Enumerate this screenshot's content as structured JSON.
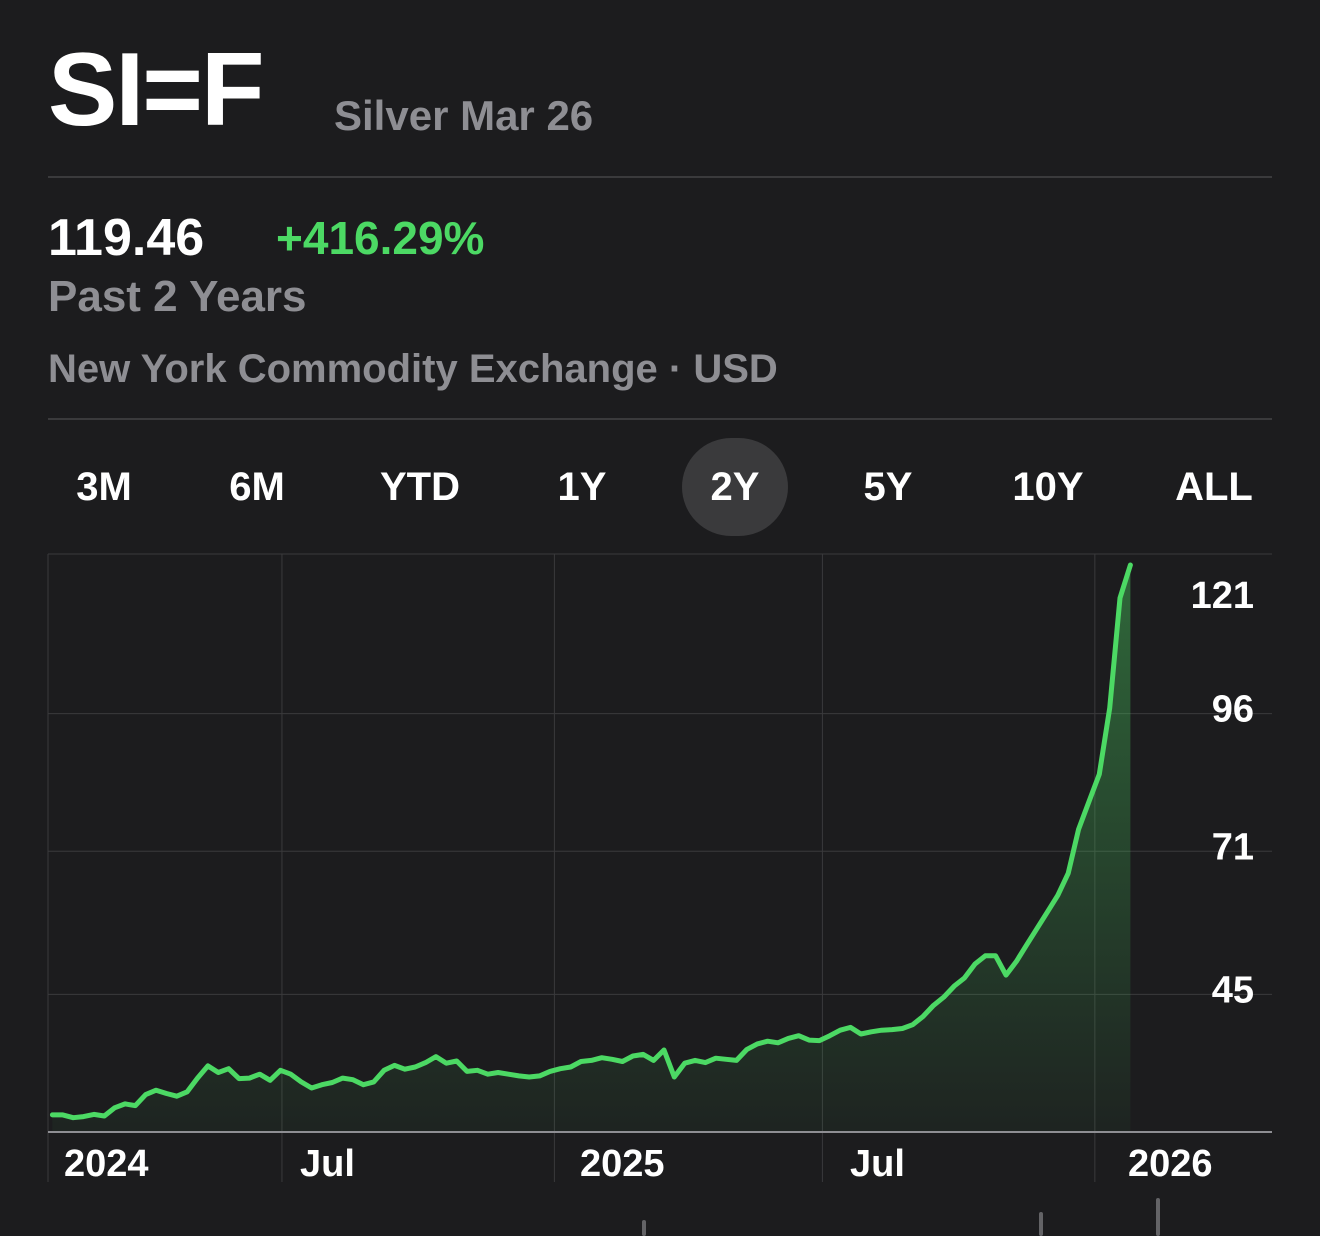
{
  "header": {
    "ticker": "SI=F",
    "name": "Silver Mar 26"
  },
  "quote": {
    "price": "119.46",
    "change": "+416.29%",
    "period": "Past 2 Years",
    "exchange": "New York Commodity Exchange · USD"
  },
  "ranges": {
    "selected": "2Y",
    "items": [
      "3M",
      "6M",
      "YTD",
      "1Y",
      "2Y",
      "5Y",
      "10Y",
      "ALL"
    ]
  },
  "colors": {
    "background": "#1c1c1e",
    "line": "#4cd964",
    "secondary_text": "#8e8e93",
    "grid": "#3a3a3c"
  },
  "chart_data": {
    "type": "line",
    "x_axis": "time",
    "x_ticks": [
      "2024",
      "Jul",
      "2025",
      "Jul",
      "2026"
    ],
    "y_ticks": [
      45,
      71,
      96,
      121
    ],
    "ylim": [
      20,
      125
    ],
    "grid": true,
    "area_fill": true,
    "series": [
      {
        "x": [
          "2024-01-28",
          "2024-02-04",
          "2024-02-11",
          "2024-02-18",
          "2024-02-25",
          "2024-03-03",
          "2024-03-10",
          "2024-03-17",
          "2024-03-24",
          "2024-03-31",
          "2024-04-07",
          "2024-04-14",
          "2024-04-21",
          "2024-04-28",
          "2024-05-05",
          "2024-05-12",
          "2024-05-19",
          "2024-05-26",
          "2024-06-02",
          "2024-06-09",
          "2024-06-16",
          "2024-06-23",
          "2024-06-30",
          "2024-07-07",
          "2024-07-14",
          "2024-07-21",
          "2024-07-28",
          "2024-08-04",
          "2024-08-11",
          "2024-08-18",
          "2024-08-25",
          "2024-09-01",
          "2024-09-08",
          "2024-09-15",
          "2024-09-22",
          "2024-09-29",
          "2024-10-06",
          "2024-10-13",
          "2024-10-20",
          "2024-10-27",
          "2024-11-03",
          "2024-11-10",
          "2024-11-17",
          "2024-11-24",
          "2024-12-01",
          "2024-12-08",
          "2024-12-15",
          "2024-12-22",
          "2024-12-29",
          "2025-01-05",
          "2025-01-12",
          "2025-01-19",
          "2025-01-26",
          "2025-02-02",
          "2025-02-09",
          "2025-02-16",
          "2025-02-23",
          "2025-03-02",
          "2025-03-09",
          "2025-03-16",
          "2025-03-23",
          "2025-03-30",
          "2025-04-06",
          "2025-04-13",
          "2025-04-20",
          "2025-04-27",
          "2025-05-04",
          "2025-05-11",
          "2025-05-18",
          "2025-05-25",
          "2025-06-01",
          "2025-06-08",
          "2025-06-15",
          "2025-06-22",
          "2025-06-29",
          "2025-07-06",
          "2025-07-13",
          "2025-07-20",
          "2025-07-27",
          "2025-08-03",
          "2025-08-10",
          "2025-08-17",
          "2025-08-24",
          "2025-08-31",
          "2025-09-07",
          "2025-09-14",
          "2025-09-21",
          "2025-09-28",
          "2025-10-05",
          "2025-10-12",
          "2025-10-19",
          "2025-10-26",
          "2025-11-02",
          "2025-11-09",
          "2025-11-16",
          "2025-11-23",
          "2025-11-30",
          "2025-12-07",
          "2025-12-14",
          "2025-12-21",
          "2025-12-28",
          "2026-01-04",
          "2026-01-11",
          "2026-01-18",
          "2026-01-25"
        ],
        "values": [
          23.1,
          23.1,
          22.6,
          22.8,
          23.2,
          22.9,
          24.4,
          25.1,
          24.8,
          26.8,
          27.6,
          27.0,
          26.5,
          27.3,
          29.8,
          32.0,
          30.8,
          31.5,
          29.7,
          29.8,
          30.5,
          29.4,
          31.2,
          30.5,
          29.1,
          28.0,
          28.6,
          29.0,
          29.8,
          29.5,
          28.6,
          29.1,
          31.2,
          32.1,
          31.4,
          31.8,
          32.6,
          33.7,
          32.5,
          32.9,
          31.0,
          31.2,
          30.5,
          30.8,
          30.5,
          30.2,
          30.0,
          30.2,
          31.0,
          31.5,
          31.8,
          32.8,
          33.0,
          33.5,
          33.2,
          32.8,
          33.8,
          34.1,
          33.0,
          34.9,
          30.0,
          32.5,
          33.0,
          32.6,
          33.4,
          33.2,
          33.0,
          35.0,
          36.0,
          36.5,
          36.2,
          37.0,
          37.5,
          36.7,
          36.6,
          37.5,
          38.5,
          39.0,
          37.8,
          38.2,
          38.5,
          38.6,
          38.8,
          39.5,
          41.0,
          43.0,
          44.5,
          46.5,
          48.0,
          50.5,
          52.0,
          52.0,
          48.5,
          51.0,
          54.0,
          57.0,
          60.0,
          63.0,
          67.0,
          75.0,
          80.0,
          85.0,
          97.0,
          117.0,
          123.0
        ]
      }
    ]
  }
}
